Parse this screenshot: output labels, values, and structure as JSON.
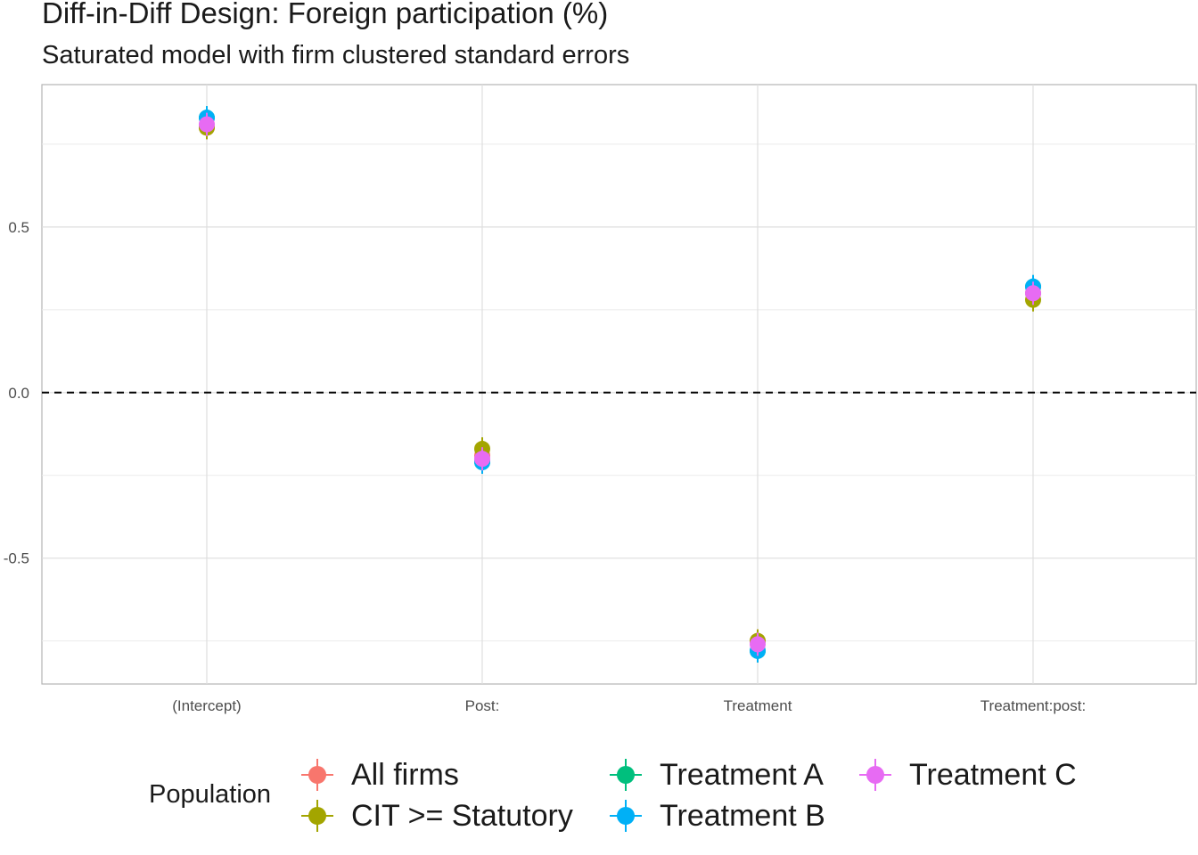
{
  "chart_data": {
    "type": "scatter",
    "title": "Diff-in-Diff Design: Foreign participation (%)",
    "subtitle": "Saturated model with firm clustered standard errors",
    "categories": [
      "(Intercept)",
      "Post:",
      "Treatment",
      "Treatment:post:"
    ],
    "y_ticks": [
      -0.5,
      0.0,
      0.5
    ],
    "y_tick_labels": [
      "-0.5",
      "0.0",
      "0.5"
    ],
    "ylim": [
      -0.88,
      0.93
    ],
    "reference_line": {
      "y": 0,
      "style": "dashed"
    },
    "legend": {
      "title": "Population",
      "position": "bottom"
    },
    "grid": true,
    "series": [
      {
        "name": "All firms",
        "color": "#F8766D",
        "values": [
          0.8,
          -0.19,
          -0.75,
          0.3
        ]
      },
      {
        "name": "CIT >= Statutory",
        "color": "#A3A500",
        "values": [
          0.8,
          -0.17,
          -0.75,
          0.28
        ]
      },
      {
        "name": "Treatment A",
        "color": "#00BF7D",
        "values": [
          0.83,
          -0.21,
          -0.78,
          0.32
        ]
      },
      {
        "name": "Treatment B",
        "color": "#00B0F6",
        "values": [
          0.83,
          -0.21,
          -0.78,
          0.32
        ]
      },
      {
        "name": "Treatment C",
        "color": "#E76BF3",
        "values": [
          0.81,
          -0.2,
          -0.76,
          0.3
        ]
      }
    ]
  }
}
